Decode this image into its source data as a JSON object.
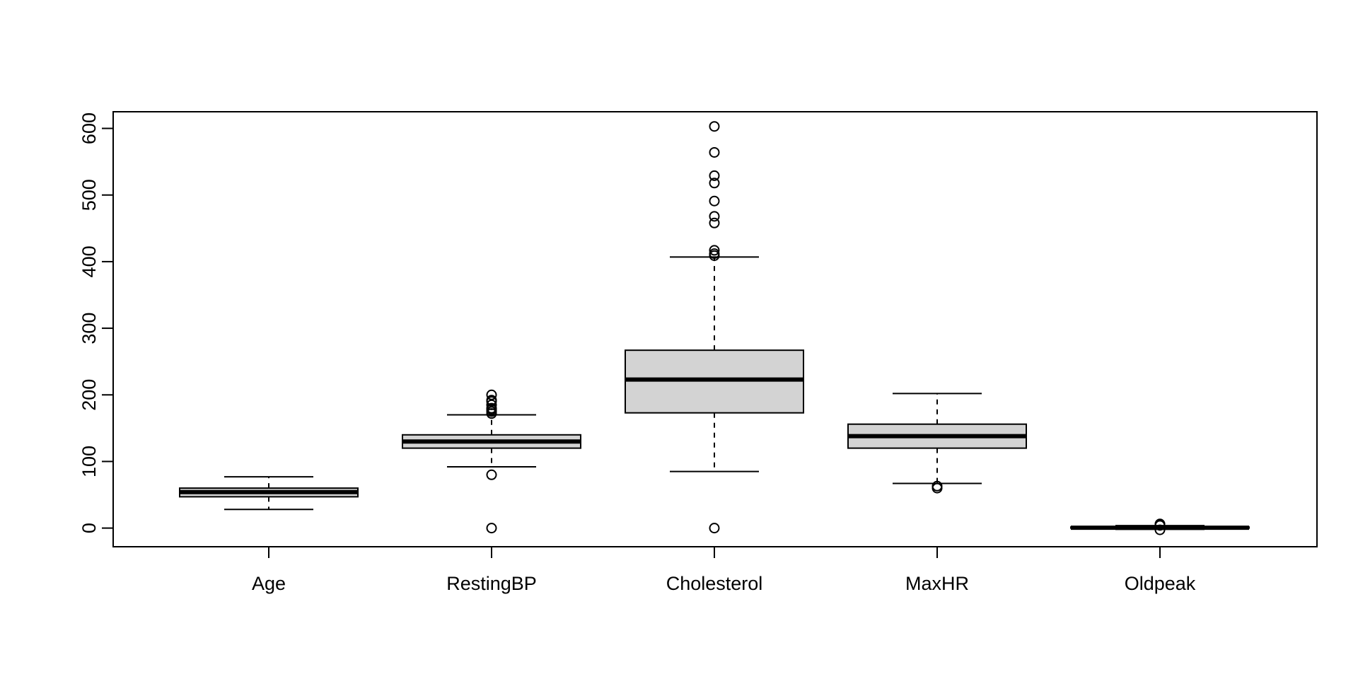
{
  "chart_data": {
    "type": "boxplot",
    "title": "",
    "xlabel": "",
    "ylabel": "",
    "ylim": [
      -28,
      625
    ],
    "yticks": [
      0,
      100,
      200,
      300,
      400,
      500,
      600
    ],
    "box_fill": "#d3d3d3",
    "line_color": "#000000",
    "categories": [
      "Age",
      "RestingBP",
      "Cholesterol",
      "MaxHR",
      "Oldpeak"
    ],
    "series": [
      {
        "category": "Age",
        "whisker_low": 28,
        "q1": 47,
        "median": 54,
        "q3": 60,
        "whisker_high": 77,
        "outliers": []
      },
      {
        "category": "RestingBP",
        "whisker_low": 92,
        "q1": 120,
        "median": 130,
        "q3": 140,
        "whisker_high": 170,
        "outliers": [
          0,
          80,
          172,
          175,
          178,
          180,
          185,
          190,
          192,
          200
        ]
      },
      {
        "category": "Cholesterol",
        "whisker_low": 85,
        "q1": 173,
        "median": 223,
        "q3": 267,
        "whisker_high": 407,
        "outliers": [
          0,
          409,
          412,
          417,
          458,
          468,
          491,
          518,
          529,
          564,
          603
        ]
      },
      {
        "category": "MaxHR",
        "whisker_low": 67,
        "q1": 120,
        "median": 138,
        "q3": 156,
        "whisker_high": 202,
        "outliers": [
          60,
          63
        ]
      },
      {
        "category": "Oldpeak",
        "whisker_low": -1.9,
        "q1": 0,
        "median": 0.6,
        "q3": 1.5,
        "whisker_high": 3.7,
        "outliers": [
          -2.6,
          4.0,
          4.4,
          5.0,
          5.6,
          6.2
        ]
      }
    ]
  }
}
